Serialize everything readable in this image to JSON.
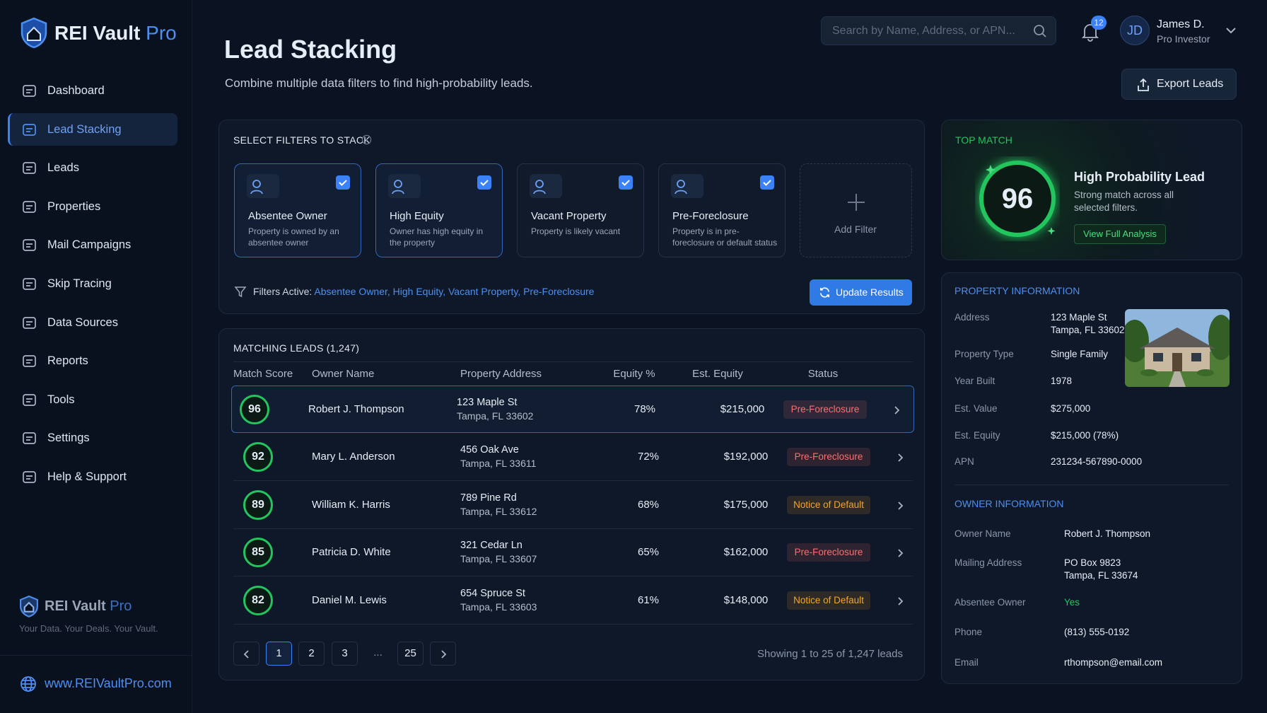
{
  "brand": {
    "name": "REI Vault",
    "accent": "Pro"
  },
  "nav": [
    "Dashboard",
    "Lead Stacking",
    "Leads",
    "Properties",
    "Mail Campaigns",
    "Skip Tracing",
    "Data Sources",
    "Reports",
    "Tools",
    "Settings",
    "Help & Support"
  ],
  "sidebar_footer": {
    "name": "REI Vault",
    "accent": "Pro",
    "tagline": "Your Data. Your Deals. Your Vault.",
    "url": "www.REIVaultPro.com"
  },
  "header": {
    "title": "Lead Stacking",
    "subtitle": "Combine multiple data filters to find high-probability leads.",
    "search_placeholder": "Search by Name, Address, or APN...",
    "notifications": 12,
    "user_initials": "JD",
    "user_name": "James D.",
    "user_role": "Pro Investor",
    "export": "Export Leads"
  },
  "filters": {
    "heading": "SELECT FILTERS TO STACK",
    "cards": [
      {
        "title": "Absentee Owner",
        "description": "Property is owned by an absentee owner"
      },
      {
        "title": "High Equity",
        "description": "Owner has high equity in the property"
      },
      {
        "title": "Vacant Property",
        "description": "Property is likely vacant"
      },
      {
        "title": "Pre-Foreclosure",
        "description": "Property is in pre-foreclosure or default status"
      }
    ],
    "add": "Add Filter",
    "active_label": "Filters Active:",
    "active_list": "Absentee Owner, High Equity, Vacant Property, Pre-Foreclosure",
    "update": "Update Results"
  },
  "leads": {
    "heading": "MATCHING LEADS (1,247)",
    "columns": [
      "Match Score",
      "Owner Name",
      "Property Address",
      "Equity %",
      "Est. Equity",
      "Status"
    ],
    "rows": [
      {
        "score": 96,
        "owner": "Robert J. Thompson",
        "street": "123 Maple St",
        "city": "Tampa, FL 33602",
        "equity_pct": "78%",
        "est_equity": "$215,000",
        "status": "Pre-Foreclosure",
        "status_color": "#f87171"
      },
      {
        "score": 92,
        "owner": "Mary L. Anderson",
        "street": "456 Oak Ave",
        "city": "Tampa, FL 33611",
        "equity_pct": "72%",
        "est_equity": "$192,000",
        "status": "Pre-Foreclosure",
        "status_color": "#f87171"
      },
      {
        "score": 89,
        "owner": "William K. Harris",
        "street": "789 Pine Rd",
        "city": "Tampa, FL 33612",
        "equity_pct": "68%",
        "est_equity": "$175,000",
        "status": "Notice of Default",
        "status_color": "#f5a524"
      },
      {
        "score": 85,
        "owner": "Patricia D. White",
        "street": "321 Cedar Ln",
        "city": "Tampa, FL 33607",
        "equity_pct": "65%",
        "est_equity": "$162,000",
        "status": "Pre-Foreclosure",
        "status_color": "#f87171"
      },
      {
        "score": 82,
        "owner": "Daniel M. Lewis",
        "street": "654 Spruce St",
        "city": "Tampa, FL 33603",
        "equity_pct": "61%",
        "est_equity": "$148,000",
        "status": "Notice of Default",
        "status_color": "#f5a524"
      }
    ],
    "pages": [
      "1",
      "2",
      "3",
      "...",
      "25"
    ],
    "summary": "Showing 1 to 25 of 1,247 leads"
  },
  "top_match": {
    "heading": "TOP MATCH",
    "score": 96,
    "title": "High Probability Lead",
    "description": "Strong match across all selected filters.",
    "button": "View Full Analysis"
  },
  "property": {
    "heading": "PROPERTY INFORMATION",
    "fields": [
      {
        "label": "Address",
        "value": [
          "123 Maple St",
          "Tampa, FL 33602"
        ]
      },
      {
        "label": "Property Type",
        "value": [
          "Single Family"
        ]
      },
      {
        "label": "Year Built",
        "value": [
          "1978"
        ]
      },
      {
        "label": "Est. Value",
        "value": [
          "$275,000"
        ]
      },
      {
        "label": "Est. Equity",
        "value": [
          "$215,000 (78%)"
        ]
      },
      {
        "label": "APN",
        "value": [
          "231234-567890-0000"
        ]
      }
    ]
  },
  "owner": {
    "heading": "OWNER INFORMATION",
    "fields": [
      {
        "label": "Owner Name",
        "value": [
          "Robert J. Thompson"
        ]
      },
      {
        "label": "Mailing Address",
        "value": [
          "PO Box 9823",
          "Tampa, FL 33674"
        ]
      },
      {
        "label": "Absentee Owner",
        "value": [
          "Yes"
        ],
        "color": "#22c55e"
      },
      {
        "label": "Phone",
        "value": [
          "(813) 555-0192"
        ]
      },
      {
        "label": "Email",
        "value": [
          "rthompson@email.com"
        ]
      }
    ]
  }
}
